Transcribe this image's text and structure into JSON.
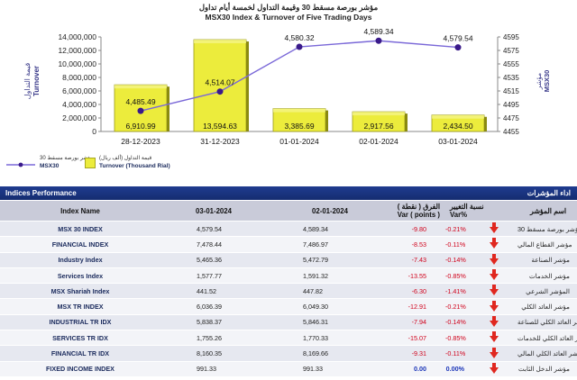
{
  "chart": {
    "title_ar": "مؤشر بورصة مسقط 30 وقيمة التداول لخمسة أيام تداول",
    "title_en": "MSX30 Index & Turnover of Five Trading Days",
    "left_axis_title_ar": "قيمة التداول",
    "left_axis_title_en": "Turnover",
    "right_axis_title_ar": "مؤشر",
    "right_axis_title_en": "MSX30",
    "left_ticks": [
      "14,000,000",
      "12,000,000",
      "10,000,000",
      "8,000,000",
      "6,000,000",
      "4,000,000",
      "2,000,000",
      "0"
    ],
    "right_ticks": [
      "4595",
      "4575",
      "4555",
      "4535",
      "4515",
      "4495",
      "4475",
      "4455"
    ],
    "bar_color": "#ecec3c",
    "line_color": "#7a68d8",
    "legend": {
      "line_ar": "مؤشر بورصة مسقط 30",
      "line_en": "MSX30",
      "bar_ar": "قيمة التداول (ألف ريال)",
      "bar_en": "Turnover (Thousand Rial)"
    }
  },
  "chart_data": {
    "type": "bar",
    "title": "MSX30 Index & Turnover of Five Trading Days",
    "categories": [
      "28-12-2023",
      "31-12-2023",
      "01-01-2024",
      "02-01-2024",
      "03-01-2024"
    ],
    "series": [
      {
        "name": "Turnover (Thousand Rial)",
        "type": "bar",
        "axis": "left",
        "values": [
          6910.99,
          13594.63,
          3385.69,
          2917.56,
          2434.5
        ],
        "labels": [
          "6,910.99",
          "13,594.63",
          "3,385.69",
          "2,917.56",
          "2,434.50"
        ]
      },
      {
        "name": "MSX30",
        "type": "line",
        "axis": "right",
        "values": [
          4485.49,
          4514.07,
          4580.32,
          4589.34,
          4579.54
        ],
        "labels": [
          "4,485.49",
          "4,514.07",
          "4,580.32",
          "4,589.34",
          "4,579.54"
        ]
      }
    ],
    "ylabel_left": "Turnover",
    "ylabel_right": "MSX30",
    "ylim_left": [
      0,
      14000
    ],
    "ylim_right": [
      4455,
      4595
    ]
  },
  "performance": {
    "title_en": "Indices Performance",
    "title_ar": "اداء المؤشرات",
    "headers": {
      "name": "Index Name",
      "date1": "03-01-2024",
      "date2": "02-01-2024",
      "var_points_ar": "الفرق ( نقطة )",
      "var_points_en": "Var ( points )",
      "var_pct_ar": "نسبة التغيير",
      "var_pct_en": "Var%",
      "arabic_name": "اسم المؤشر"
    },
    "rows": [
      {
        "name": "MSX 30 INDEX",
        "v1": "4,579.54",
        "v2": "4,589.34",
        "var": "-9.80",
        "pct": "-0.21%",
        "arrow": "down",
        "ar": "مؤشر بورصة مسقط 30"
      },
      {
        "name": "FINANCIAL INDEX",
        "v1": "7,478.44",
        "v2": "7,486.97",
        "var": "-8.53",
        "pct": "-0.11%",
        "arrow": "down",
        "ar": "مؤشر القطاع المالي"
      },
      {
        "name": "Industry Index",
        "v1": "5,465.36",
        "v2": "5,472.79",
        "var": "-7.43",
        "pct": "-0.14%",
        "arrow": "down",
        "ar": "مؤشر الصناعة"
      },
      {
        "name": "Services Index",
        "v1": "1,577.77",
        "v2": "1,591.32",
        "var": "-13.55",
        "pct": "-0.85%",
        "arrow": "down",
        "ar": "مؤشر الخدمات"
      },
      {
        "name": "MSX Shariah Index",
        "v1": "441.52",
        "v2": "447.82",
        "var": "-6.30",
        "pct": "-1.41%",
        "arrow": "down",
        "ar": "المؤشر الشرعي"
      },
      {
        "name": "MSX TR INDEX",
        "v1": "6,036.39",
        "v2": "6,049.30",
        "var": "-12.91",
        "pct": "-0.21%",
        "arrow": "down",
        "ar": "مؤشر العائد الكلي"
      },
      {
        "name": "INDUSTRIAL TR IDX",
        "v1": "5,838.37",
        "v2": "5,846.31",
        "var": "-7.94",
        "pct": "-0.14%",
        "arrow": "down",
        "ar": "مؤشر العائد الكلي للصناعة"
      },
      {
        "name": "SERVICES TR IDX",
        "v1": "1,755.26",
        "v2": "1,770.33",
        "var": "-15.07",
        "pct": "-0.85%",
        "arrow": "down",
        "ar": "مؤشر العائد الكلي للخدمات"
      },
      {
        "name": "FINANCIAL TR IDX",
        "v1": "8,160.35",
        "v2": "8,169.66",
        "var": "-9.31",
        "pct": "-0.11%",
        "arrow": "down",
        "ar": "مؤشر العائد الكلي المالي"
      },
      {
        "name": "FIXED INCOME INDEX",
        "v1": "991.33",
        "v2": "991.33",
        "var": "0.00",
        "pct": "0.00%",
        "arrow": "down",
        "ar": "مؤشر الدخل الثابت"
      }
    ]
  }
}
